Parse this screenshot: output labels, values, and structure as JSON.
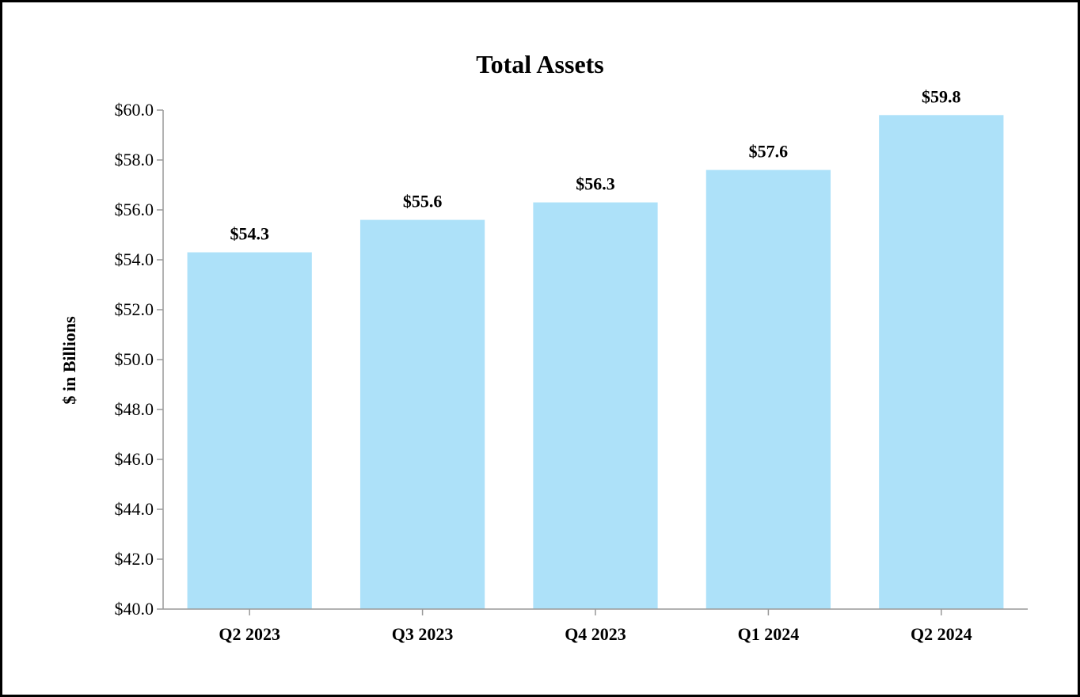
{
  "chart_data": {
    "type": "bar",
    "title": "Total Assets",
    "xlabel": "",
    "ylabel": "$ in Billions",
    "categories": [
      "Q2 2023",
      "Q3 2023",
      "Q4 2023",
      "Q1 2024",
      "Q2 2024"
    ],
    "values": [
      54.3,
      55.6,
      56.3,
      57.6,
      59.8
    ],
    "data_labels": [
      "$54.3",
      "$55.6",
      "$56.3",
      "$57.6",
      "$59.8"
    ],
    "ylim": [
      40.0,
      60.0
    ],
    "yticks": [
      40.0,
      42.0,
      44.0,
      46.0,
      48.0,
      50.0,
      52.0,
      54.0,
      56.0,
      58.0,
      60.0
    ],
    "ytick_labels": [
      "$40.0",
      "$42.0",
      "$44.0",
      "$46.0",
      "$48.0",
      "$50.0",
      "$52.0",
      "$54.0",
      "$56.0",
      "$58.0",
      "$60.0"
    ],
    "grid": false,
    "legend": "none",
    "colors": {
      "bar": "#ade1f9",
      "axis": "#999999",
      "text": "#000000",
      "border": "#000000"
    }
  }
}
